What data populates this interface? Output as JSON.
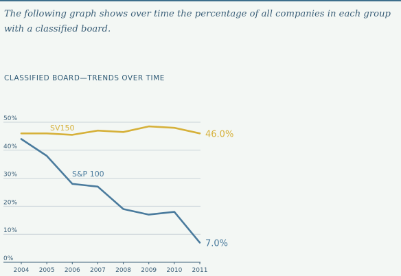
{
  "intro_text": "The following graph shows over time the percentage of all companies in each group with a classified board.",
  "chart_data": {
    "type": "line",
    "title": "CLASSIFIED BOARD—TRENDS OVER TIME",
    "x": [
      "2004",
      "2005",
      "2006",
      "2007",
      "2008",
      "2009",
      "2010",
      "2011"
    ],
    "y_ticks": [
      "0%",
      "10%",
      "20%",
      "30%",
      "40%",
      "50%"
    ],
    "ylim": [
      0,
      50
    ],
    "grid": true,
    "series": [
      {
        "name": "SV150",
        "color": "#d6b13a",
        "values": [
          46,
          46,
          45.5,
          47,
          46.5,
          48.5,
          48,
          46
        ],
        "end_label": "46.0%"
      },
      {
        "name": "S&P 100",
        "color": "#4a7b9d",
        "values": [
          44,
          38,
          28,
          27,
          19,
          17,
          18,
          7
        ],
        "end_label": "7.0%"
      }
    ],
    "colors": {
      "axis_text": "#3b5f78",
      "grid": "#c9d3d8",
      "axis": "#3b5f78"
    }
  }
}
